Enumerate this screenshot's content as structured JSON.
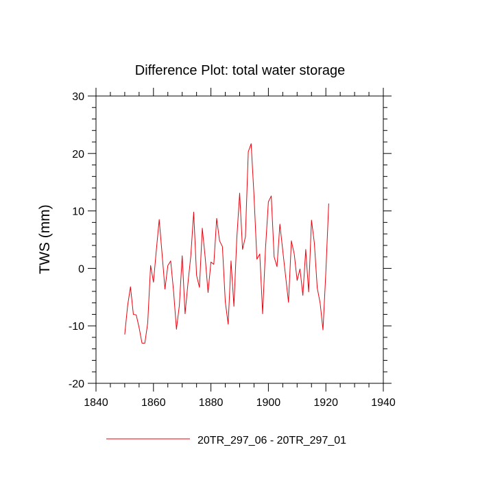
{
  "chart_data": {
    "type": "line",
    "title": "Difference Plot: total water storage",
    "xlabel": "",
    "ylabel": "TWS  (mm)",
    "xlim": [
      1840,
      1940
    ],
    "ylim": [
      -20,
      30
    ],
    "xticks": [
      1840,
      1860,
      1880,
      1900,
      1920,
      1940
    ],
    "yticks": [
      -20,
      -10,
      0,
      10,
      20,
      30
    ],
    "grid": false,
    "legend_position": "bottom",
    "series": [
      {
        "name": "20TR_297_06 - 20TR_297_01",
        "color": "#e8000b",
        "x": [
          1850,
          1851,
          1852,
          1853,
          1854,
          1855,
          1856,
          1857,
          1858,
          1859,
          1860,
          1861,
          1862,
          1863,
          1864,
          1865,
          1866,
          1867,
          1868,
          1869,
          1870,
          1871,
          1872,
          1873,
          1874,
          1875,
          1876,
          1877,
          1878,
          1879,
          1880,
          1881,
          1882,
          1883,
          1884,
          1885,
          1886,
          1887,
          1888,
          1889,
          1890,
          1891,
          1892,
          1893,
          1894,
          1895,
          1896,
          1897,
          1898,
          1899,
          1900,
          1901,
          1902,
          1903,
          1904,
          1905,
          1906,
          1907,
          1908,
          1909,
          1910,
          1911,
          1912,
          1913,
          1914,
          1915,
          1916,
          1917,
          1918,
          1919,
          1920,
          1921
        ],
        "values": [
          -11.5,
          -6.5,
          -3.2,
          -8.0,
          -8.1,
          -10.3,
          -13.0,
          -13.0,
          -9.5,
          0.5,
          -2.4,
          3.2,
          8.5,
          2.5,
          -3.6,
          0.5,
          1.3,
          -4.0,
          -10.6,
          -6.5,
          2.2,
          -7.9,
          -2.6,
          2.2,
          9.8,
          -1.2,
          -3.3,
          7.0,
          1.9,
          -4.2,
          1.1,
          0.7,
          8.7,
          4.8,
          3.8,
          -5.8,
          -9.7,
          1.3,
          -6.6,
          5.2,
          13.1,
          3.3,
          5.5,
          20.3,
          21.7,
          12.6,
          1.6,
          2.5,
          -7.9,
          3.5,
          11.6,
          12.6,
          2.0,
          0.3,
          7.7,
          3.1,
          -1.4,
          -5.9,
          4.8,
          2.5,
          -2.1,
          -0.1,
          -4.7,
          3.3,
          -4.1,
          8.4,
          4.4,
          -3.4,
          -6.0,
          -10.7,
          -0.6,
          11.3
        ]
      }
    ]
  }
}
